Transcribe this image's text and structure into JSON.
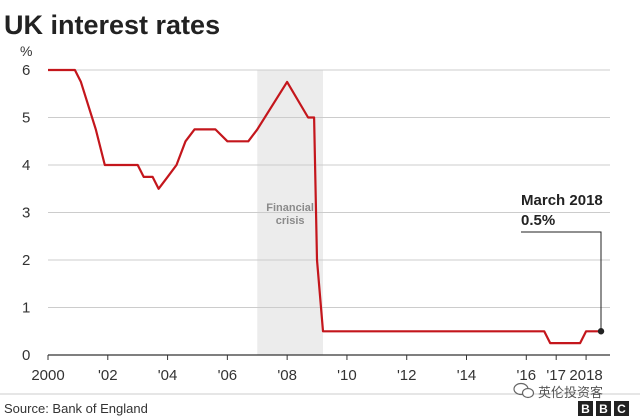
{
  "chart_data": {
    "type": "line",
    "title": "UK interest rates",
    "ylabel": "%",
    "xlabel": "",
    "ylim": [
      0,
      6
    ],
    "yticks": [
      0,
      1,
      2,
      3,
      4,
      5,
      6
    ],
    "xlim": [
      2000,
      2018.5
    ],
    "xticks": [
      {
        "value": 2000,
        "label": "2000"
      },
      {
        "value": 2002,
        "label": "'02"
      },
      {
        "value": 2004,
        "label": "'04"
      },
      {
        "value": 2006,
        "label": "'06"
      },
      {
        "value": 2008,
        "label": "'08"
      },
      {
        "value": 2010,
        "label": "'10"
      },
      {
        "value": 2012,
        "label": "'12"
      },
      {
        "value": 2014,
        "label": "'14"
      },
      {
        "value": 2016,
        "label": "'16"
      },
      {
        "value": 2017,
        "label": "'17"
      },
      {
        "value": 2018,
        "label": "2018"
      }
    ],
    "grid": "horizontal",
    "series": [
      {
        "color": "#c4161c",
        "points": [
          [
            2000.0,
            6.0
          ],
          [
            2000.9,
            6.0
          ],
          [
            2001.1,
            5.75
          ],
          [
            2001.6,
            4.75
          ],
          [
            2001.9,
            4.0
          ],
          [
            2002.0,
            4.0
          ],
          [
            2003.0,
            4.0
          ],
          [
            2003.2,
            3.75
          ],
          [
            2003.5,
            3.75
          ],
          [
            2003.7,
            3.5
          ],
          [
            2004.0,
            3.75
          ],
          [
            2004.3,
            4.0
          ],
          [
            2004.6,
            4.5
          ],
          [
            2004.9,
            4.75
          ],
          [
            2005.6,
            4.75
          ],
          [
            2006.0,
            4.5
          ],
          [
            2006.7,
            4.5
          ],
          [
            2007.0,
            4.75
          ],
          [
            2008.0,
            5.75
          ],
          [
            2008.7,
            5.0
          ],
          [
            2008.9,
            5.0
          ],
          [
            2009.0,
            2.0
          ],
          [
            2009.2,
            0.5
          ],
          [
            2016.6,
            0.5
          ],
          [
            2016.8,
            0.25
          ],
          [
            2017.8,
            0.25
          ],
          [
            2018.0,
            0.5
          ],
          [
            2018.5,
            0.5
          ]
        ]
      }
    ],
    "shaded_region": {
      "x_start": 2007.0,
      "x_end": 2009.2,
      "label_lines": [
        "Financial",
        "crisis"
      ]
    },
    "annotation": {
      "x": 2018.5,
      "y": 0.5,
      "lines": [
        "March 2018",
        "0.5%"
      ]
    },
    "source": "Source: Bank of England",
    "colors": {
      "line": "#c4161c",
      "grid": "#cccccc",
      "shade": "#ececec",
      "axis": "#333333"
    }
  },
  "watermark": {
    "text": "英伦投资客",
    "icon": "wechat-icon"
  },
  "logo": {
    "letters": [
      "B",
      "B",
      "C"
    ]
  }
}
